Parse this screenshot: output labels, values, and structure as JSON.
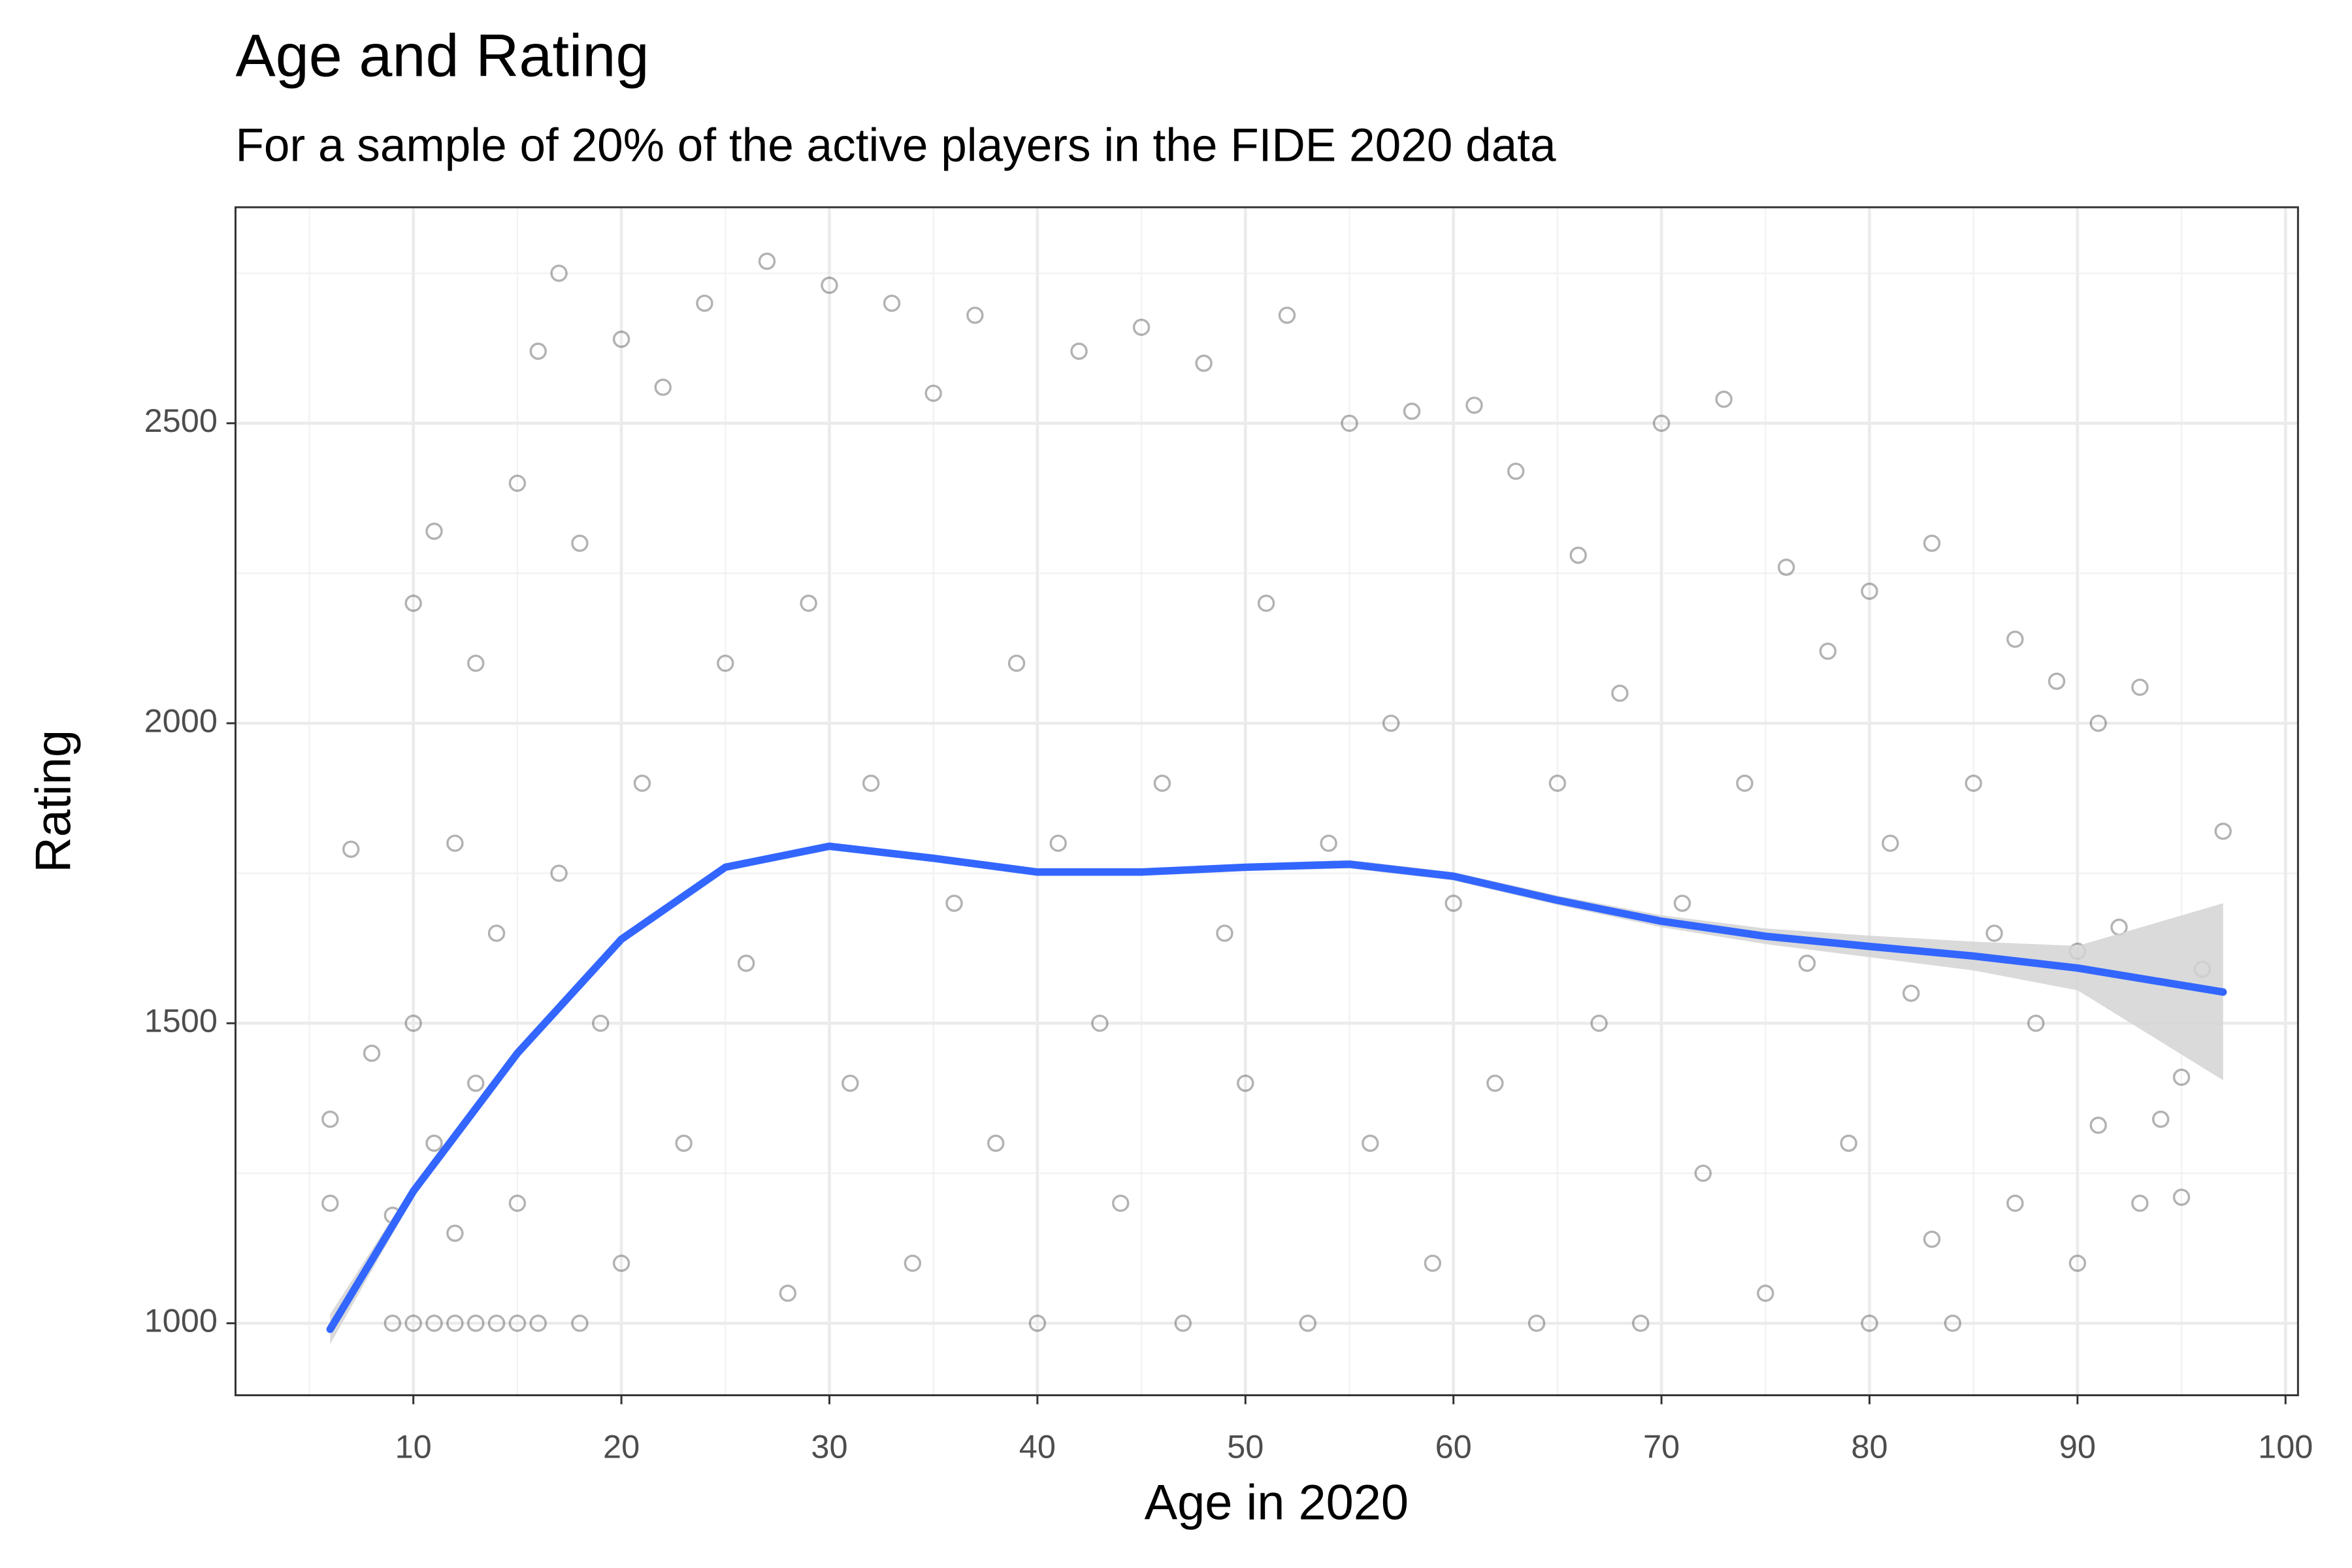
{
  "chart_data": {
    "type": "scatter",
    "title": "Age and Rating",
    "subtitle": "For a sample of 20% of the active players in the FIDE 2020 data",
    "x_label": "Age in 2020",
    "y_label": "Rating",
    "xlim": [
      1.45,
      100.6
    ],
    "ylim": [
      880,
      2860
    ],
    "xticks": [
      10,
      20,
      30,
      40,
      50,
      60,
      70,
      80,
      90,
      100
    ],
    "yticks": [
      1000,
      1500,
      2000,
      2500
    ],
    "xminor": [
      5,
      15,
      25,
      35,
      45,
      55,
      65,
      75,
      85,
      95
    ],
    "yminor": [
      1250,
      1750,
      2250,
      2750
    ],
    "grid": true,
    "points": {
      "color": "#000000",
      "x": [
        7,
        6,
        6,
        8,
        9,
        9,
        10,
        10,
        10,
        11,
        11,
        11,
        12,
        12,
        12,
        13,
        13,
        13,
        14,
        14,
        15,
        15,
        15,
        16,
        16,
        17,
        17,
        18,
        18,
        19,
        20,
        20,
        21,
        22,
        23,
        24,
        25,
        26,
        27,
        28,
        29,
        30,
        31,
        32,
        33,
        34,
        35,
        36,
        37,
        38,
        39,
        40,
        41,
        42,
        43,
        44,
        45,
        46,
        47,
        48,
        49,
        50,
        51,
        52,
        53,
        54,
        55,
        56,
        57,
        58,
        59,
        60,
        61,
        62,
        63,
        64,
        65,
        66,
        67,
        68,
        69,
        70,
        71,
        72,
        73,
        74,
        75,
        76,
        77,
        78,
        79,
        80,
        80,
        81,
        82,
        83,
        83,
        84,
        85,
        86,
        87,
        87,
        88,
        89,
        90,
        90,
        91,
        91,
        92,
        93,
        93,
        94,
        95,
        95,
        96,
        97
      ],
      "y": [
        1790,
        1340,
        1200,
        1450,
        1000,
        1180,
        1000,
        2200,
        1500,
        1000,
        2320,
        1300,
        1000,
        1800,
        1150,
        1000,
        2100,
        1400,
        1000,
        1650,
        1000,
        2400,
        1200,
        2620,
        1000,
        2750,
        1750,
        1000,
        2300,
        1500,
        2640,
        1100,
        1900,
        2560,
        1300,
        2700,
        2100,
        1600,
        2770,
        1050,
        2200,
        2730,
        1400,
        1900,
        2700,
        1100,
        2550,
        1700,
        2680,
        1300,
        2100,
        1000,
        1800,
        2620,
        1500,
        1200,
        2660,
        1900,
        1000,
        2600,
        1650,
        1400,
        2200,
        2680,
        1000,
        1800,
        2500,
        1300,
        2000,
        2520,
        1100,
        1700,
        2530,
        1400,
        2420,
        1000,
        1900,
        2280,
        1500,
        2050,
        1000,
        2500,
        1700,
        1250,
        2540,
        1900,
        1050,
        2260,
        1600,
        2120,
        1300,
        2220,
        1000,
        1800,
        1550,
        2300,
        1140,
        1000,
        1900,
        1650,
        2140,
        1200,
        1500,
        2070,
        1620,
        1100,
        2000,
        1330,
        1660,
        2060,
        1200,
        1340,
        1210,
        1410,
        1590,
        1820
      ]
    },
    "smooth": {
      "color": "#3366ff",
      "band_color": "#d3d3d3",
      "x": [
        6,
        10,
        15,
        20,
        25,
        30,
        35,
        40,
        45,
        50,
        55,
        60,
        65,
        70,
        75,
        80,
        85,
        90,
        97
      ],
      "y": [
        990,
        1220,
        1450,
        1640,
        1760,
        1795,
        1775,
        1752,
        1752,
        1760,
        1765,
        1745,
        1705,
        1670,
        1645,
        1628,
        1612,
        1592,
        1552
      ],
      "lower": [
        965,
        1210,
        1442,
        1633,
        1754,
        1789,
        1769,
        1746,
        1746,
        1754,
        1758,
        1738,
        1697,
        1660,
        1632,
        1610,
        1588,
        1555,
        1405
      ],
      "upper": [
        1015,
        1230,
        1458,
        1647,
        1766,
        1801,
        1781,
        1758,
        1758,
        1766,
        1772,
        1752,
        1713,
        1680,
        1658,
        1646,
        1636,
        1629,
        1700
      ]
    }
  }
}
